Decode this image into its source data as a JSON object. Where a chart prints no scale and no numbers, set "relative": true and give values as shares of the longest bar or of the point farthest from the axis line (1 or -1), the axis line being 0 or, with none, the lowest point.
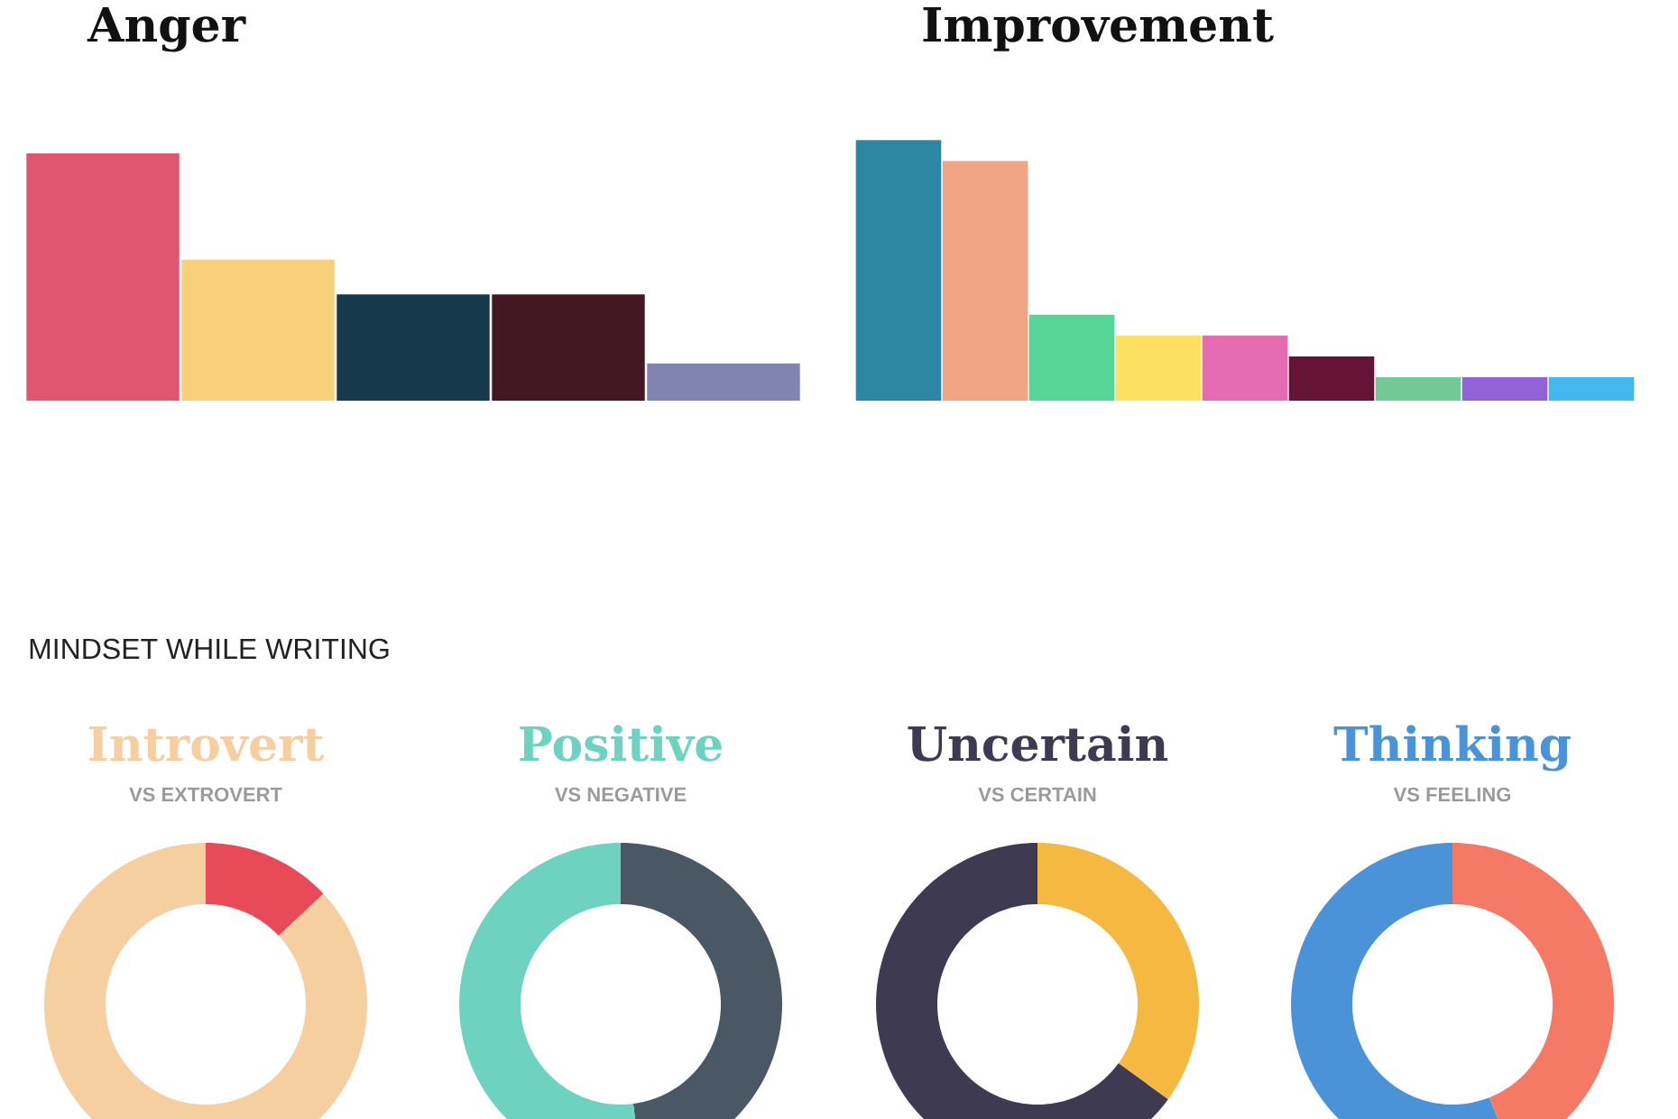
{
  "chart_data": [
    {
      "type": "bar",
      "title": "Anger",
      "categories": [
        null,
        null,
        null,
        null,
        null
      ],
      "values": [
        1,
        0.57,
        0.43,
        0.43,
        0.15
      ],
      "colors": [
        "#e05570",
        "#f8d07a",
        "#163a4b",
        "#431723",
        "#7f84b0"
      ],
      "relative": true
    },
    {
      "type": "bar",
      "title": "Improvement",
      "categories": [
        null,
        null,
        null,
        null,
        null,
        null,
        null,
        null,
        null
      ],
      "values": [
        1,
        0.92,
        0.33,
        0.25,
        0.25,
        0.17,
        0.09,
        0.09,
        0.09
      ],
      "colors": [
        "#2e86a5",
        "#f2a582",
        "#55d597",
        "#fde05f",
        "#e66bb3",
        "#651337",
        "#72c994",
        "#9162d8",
        "#43b7f0"
      ],
      "relative": true
    },
    {
      "type": "other",
      "title": "MINDSET WHILE WRITING"
    },
    {
      "type": "donut",
      "title": "Introvert",
      "subtitle": "VS EXTROVERT",
      "categories": [
        null,
        null
      ],
      "values": [
        13,
        87
      ],
      "colors": [
        "#e84a57",
        "#f5cfa0"
      ]
    },
    {
      "type": "donut",
      "title": "Positive",
      "subtitle": "VS NEGATIVE",
      "categories": [
        null,
        null
      ],
      "values": [
        48,
        52
      ],
      "colors": [
        "#4a5866",
        "#6dd3c0"
      ]
    },
    {
      "type": "donut",
      "title": "Uncertain",
      "subtitle": "VS CERTAIN",
      "categories": [
        null,
        null
      ],
      "values": [
        35,
        65
      ],
      "colors": [
        "#f5b942",
        "#3d3a52"
      ]
    },
    {
      "type": "donut",
      "title": "Thinking",
      "subtitle": "VS FEELING",
      "categories": [
        null,
        null
      ],
      "values": [
        44,
        56
      ],
      "colors": [
        "#f47a65",
        "#4a93d8"
      ]
    }
  ]
}
